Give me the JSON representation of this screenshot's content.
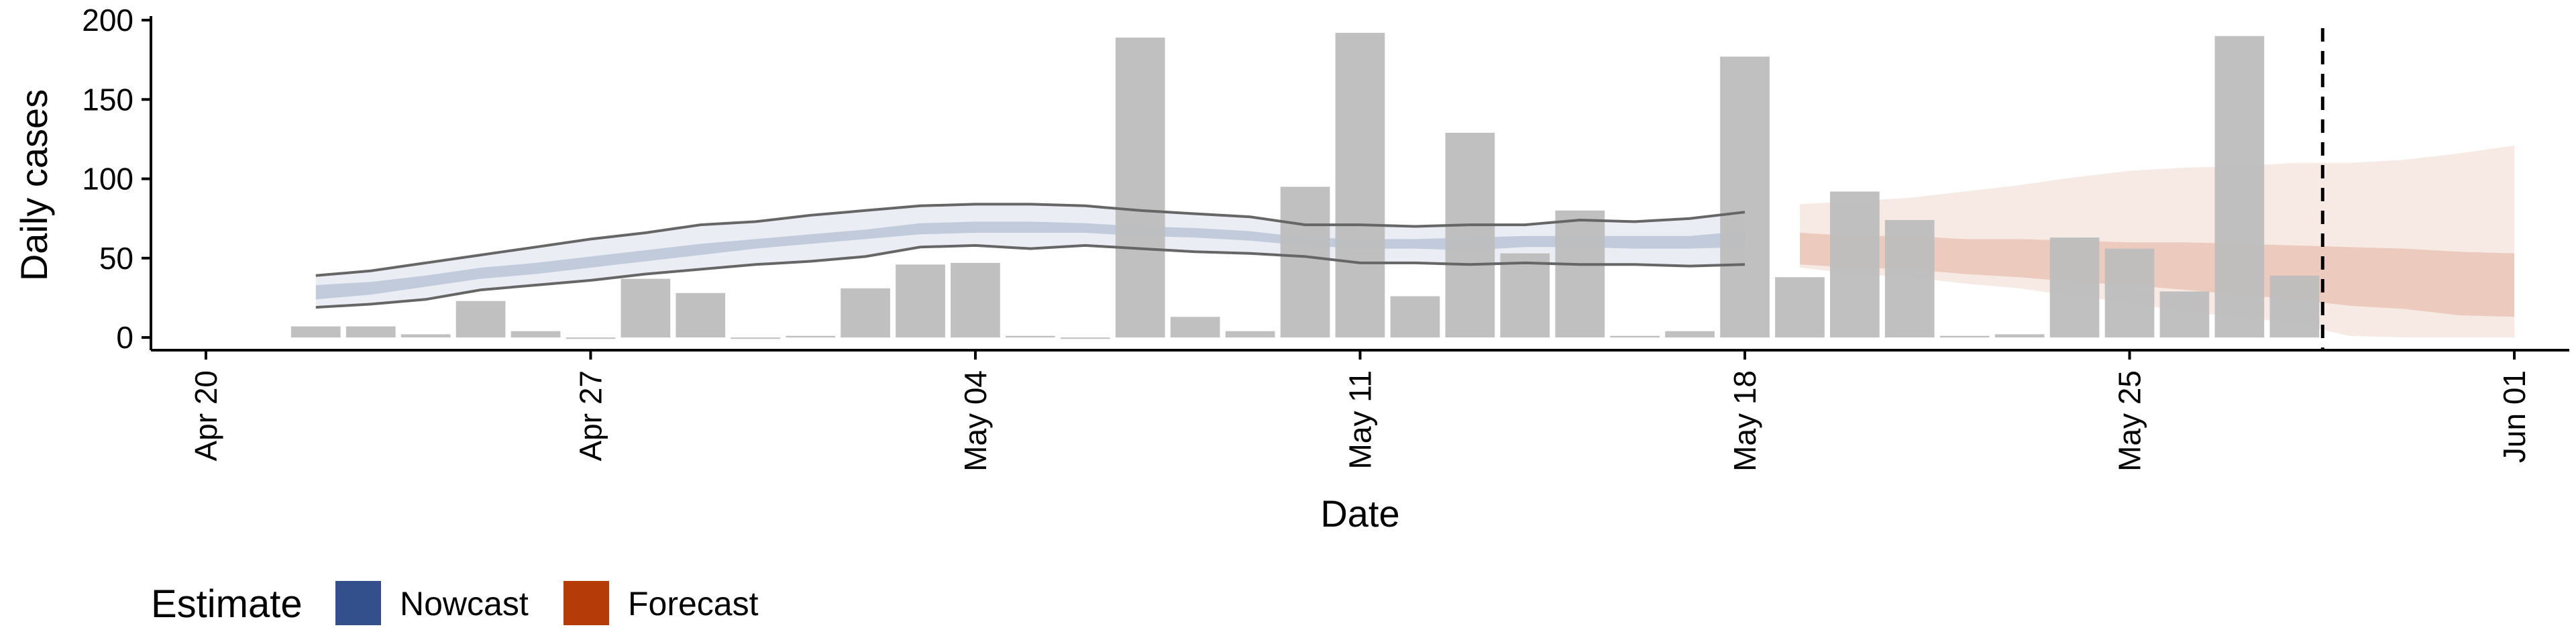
{
  "chart_data": {
    "type": "bar",
    "xlabel": "Date",
    "ylabel": "Daily cases",
    "ylim": [
      -8,
      200
    ],
    "xlim": [
      "2020-04-19",
      "2020-06-02"
    ],
    "y_ticks": [
      0,
      50,
      100,
      150,
      200
    ],
    "x_ticks": [
      {
        "date": "2020-04-20",
        "label": "Apr 20"
      },
      {
        "date": "2020-04-27",
        "label": "Apr 27"
      },
      {
        "date": "2020-05-04",
        "label": "May 04"
      },
      {
        "date": "2020-05-11",
        "label": "May 11"
      },
      {
        "date": "2020-05-18",
        "label": "May 18"
      },
      {
        "date": "2020-05-25",
        "label": "May 25"
      },
      {
        "date": "2020-06-01",
        "label": "Jun 01"
      }
    ],
    "grid": false,
    "bar_color": "#bdbdbd",
    "reported_cases": {
      "dates": [
        "2020-04-22",
        "2020-04-23",
        "2020-04-24",
        "2020-04-25",
        "2020-04-26",
        "2020-04-27",
        "2020-04-28",
        "2020-04-29",
        "2020-04-30",
        "2020-05-01",
        "2020-05-02",
        "2020-05-03",
        "2020-05-04",
        "2020-05-05",
        "2020-05-06",
        "2020-05-07",
        "2020-05-08",
        "2020-05-09",
        "2020-05-10",
        "2020-05-11",
        "2020-05-12",
        "2020-05-13",
        "2020-05-14",
        "2020-05-15",
        "2020-05-16",
        "2020-05-17",
        "2020-05-18",
        "2020-05-19",
        "2020-05-20",
        "2020-05-21",
        "2020-05-22",
        "2020-05-23",
        "2020-05-24",
        "2020-05-25",
        "2020-05-26",
        "2020-05-27",
        "2020-05-28"
      ],
      "values": [
        7,
        7,
        2,
        23,
        4,
        0,
        37,
        28,
        0,
        1,
        31,
        46,
        47,
        1,
        0,
        189,
        13,
        4,
        95,
        192,
        26,
        129,
        53,
        80,
        1,
        4,
        177,
        38,
        92,
        74,
        1,
        2,
        63,
        56,
        29,
        190,
        39
      ]
    },
    "series": [
      {
        "name": "Nowcast",
        "color": "#33508c",
        "dates": [
          "2020-04-22",
          "2020-04-23",
          "2020-04-24",
          "2020-04-25",
          "2020-04-26",
          "2020-04-27",
          "2020-04-28",
          "2020-04-29",
          "2020-04-30",
          "2020-05-01",
          "2020-05-02",
          "2020-05-03",
          "2020-05-04",
          "2020-05-05",
          "2020-05-06",
          "2020-05-07",
          "2020-05-08",
          "2020-05-09",
          "2020-05-10",
          "2020-05-11",
          "2020-05-12",
          "2020-05-13",
          "2020-05-14",
          "2020-05-15",
          "2020-05-16",
          "2020-05-17",
          "2020-05-18"
        ],
        "lower_90": [
          19,
          21,
          24,
          30,
          33,
          36,
          40,
          43,
          46,
          48,
          51,
          57,
          58,
          56,
          58,
          56,
          54,
          53,
          51,
          47,
          47,
          46,
          47,
          46,
          46,
          45,
          46
        ],
        "upper_90": [
          39,
          42,
          47,
          52,
          57,
          62,
          66,
          71,
          73,
          77,
          80,
          83,
          84,
          84,
          83,
          80,
          78,
          76,
          71,
          71,
          70,
          71,
          71,
          74,
          73,
          75,
          79
        ],
        "lower_50": [
          24,
          27,
          32,
          37,
          40,
          44,
          48,
          52,
          56,
          59,
          62,
          65,
          66,
          66,
          66,
          64,
          63,
          61,
          58,
          56,
          56,
          55,
          57,
          57,
          56,
          56,
          57
        ],
        "upper_50": [
          33,
          35,
          39,
          44,
          47,
          51,
          55,
          59,
          62,
          65,
          68,
          72,
          73,
          73,
          72,
          70,
          69,
          67,
          63,
          62,
          62,
          63,
          64,
          64,
          64,
          64,
          67
        ]
      },
      {
        "name": "Forecast",
        "color": "#b53b08",
        "dates": [
          "2020-05-19",
          "2020-05-20",
          "2020-05-21",
          "2020-05-22",
          "2020-05-23",
          "2020-05-24",
          "2020-05-25",
          "2020-05-26",
          "2020-05-27",
          "2020-05-28",
          "2020-05-29",
          "2020-05-30",
          "2020-05-31",
          "2020-06-01"
        ],
        "lower_90": [
          44,
          40,
          38,
          34,
          31,
          26,
          22,
          16,
          13,
          9,
          1,
          0,
          0,
          0
        ],
        "upper_90": [
          84,
          86,
          88,
          92,
          96,
          101,
          105,
          107,
          108,
          110,
          110,
          112,
          116,
          121
        ],
        "lower_50": [
          46,
          44,
          43,
          40,
          38,
          35,
          33,
          30,
          27,
          24,
          20,
          18,
          14,
          13
        ],
        "upper_50": [
          66,
          64,
          64,
          62,
          62,
          61,
          60,
          60,
          59,
          58,
          57,
          56,
          54,
          53
        ]
      }
    ],
    "reference_line": {
      "date": "2020-05-28",
      "style": "dashed"
    },
    "legend": {
      "title": "Estimate",
      "placement": "bottom-left",
      "items": [
        {
          "label": "Nowcast",
          "color": "#33508c"
        },
        {
          "label": "Forecast",
          "color": "#b53b08"
        }
      ]
    }
  }
}
